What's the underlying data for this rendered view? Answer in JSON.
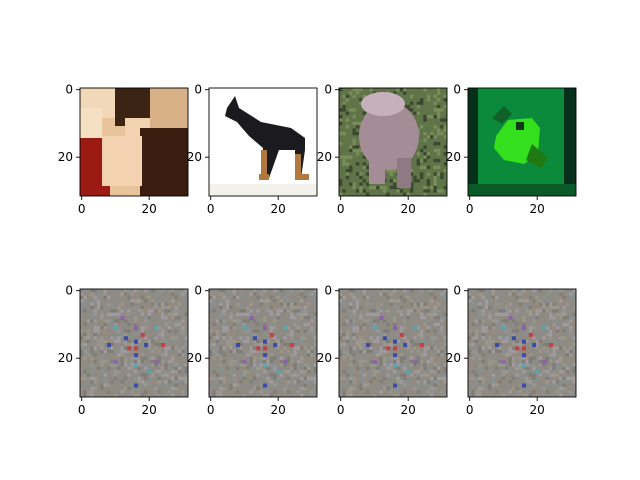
{
  "figure": {
    "layout": {
      "rows": 2,
      "cols": 4
    },
    "axis": {
      "pixels": 32,
      "x_ticks": [
        "0",
        "20"
      ],
      "x_tick_values": [
        0,
        20
      ],
      "y_ticks": [
        "0",
        "20"
      ],
      "y_tick_values": [
        0,
        20
      ]
    },
    "panels": [
      {
        "row": 0,
        "col": 0,
        "kind": "photo",
        "icon": "person-photo-icon",
        "subject": "person",
        "colors": {
          "background": "#e9c49a",
          "shirt": "#3a1d0e",
          "red": "#9c1a14",
          "hair": "#3b2414",
          "skin": "#f2d2b0"
        }
      },
      {
        "row": 0,
        "col": 1,
        "kind": "photo",
        "icon": "dog-photo-icon",
        "subject": "dog",
        "colors": {
          "background": "#ffffff",
          "body": "#1b1b1f",
          "tan": "#b07a3e"
        }
      },
      {
        "row": 0,
        "col": 2,
        "kind": "photo",
        "icon": "animal-on-grass-photo-icon",
        "subject": "animal on grass",
        "colors": {
          "grass": "#5f7448",
          "animal": "#a58d97",
          "shadow": "#3c4730"
        }
      },
      {
        "row": 0,
        "col": 3,
        "kind": "photo",
        "icon": "frog-photo-icon",
        "subject": "frog",
        "colors": {
          "background": "#0a8a3a",
          "dark": "#07301a",
          "frog": "#34e01e",
          "shade": "#1f7a14"
        }
      },
      {
        "row": 1,
        "col": 0,
        "kind": "noise",
        "icon": "noise-pattern-icon",
        "colors": {
          "base": "#8d8b84",
          "red": "#c8363a",
          "blue": "#2d3fa8",
          "cyan": "#55a7b0",
          "purple": "#8a5ab0"
        }
      },
      {
        "row": 1,
        "col": 1,
        "kind": "noise",
        "icon": "noise-pattern-icon",
        "colors": {
          "base": "#8d8b84",
          "red": "#c8363a",
          "blue": "#2d3fa8",
          "cyan": "#55a7b0",
          "purple": "#8a5ab0"
        }
      },
      {
        "row": 1,
        "col": 2,
        "kind": "noise",
        "icon": "noise-pattern-icon",
        "colors": {
          "base": "#8d8b84",
          "red": "#c8363a",
          "blue": "#2d3fa8",
          "cyan": "#55a7b0",
          "purple": "#8a5ab0"
        }
      },
      {
        "row": 1,
        "col": 3,
        "kind": "noise",
        "icon": "noise-pattern-icon",
        "colors": {
          "base": "#8d8b84",
          "red": "#c8363a",
          "blue": "#2d3fa8",
          "cyan": "#55a7b0",
          "purple": "#8a5ab0"
        }
      }
    ]
  }
}
